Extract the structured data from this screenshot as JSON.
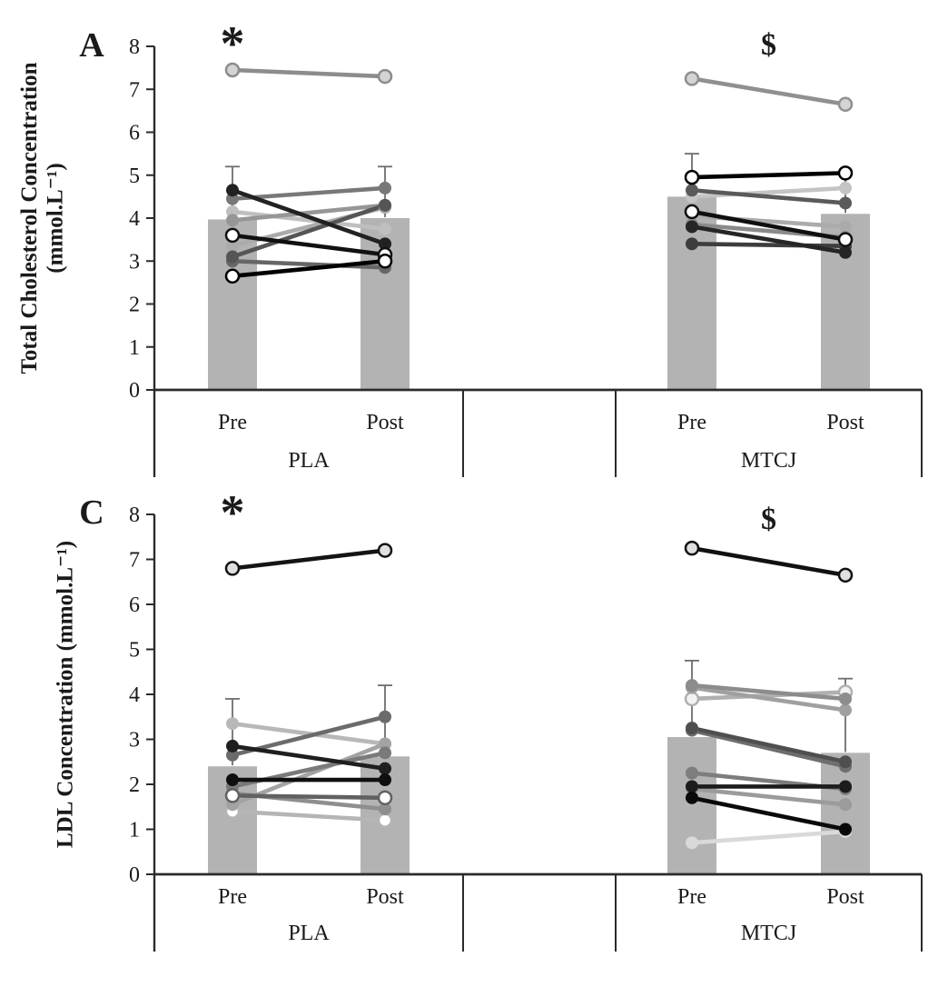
{
  "figure": {
    "background": "#ffffff",
    "axis_color": "#2b2b2b",
    "text_color": "#1a1a1a",
    "error_bar_color": "#6e6e6e"
  },
  "chart_data": [
    {
      "type": "bar",
      "panel_label": "A",
      "ylabel_lines": [
        "Total Cholesterol Concentration",
        "(mmol.L⁻¹)"
      ],
      "ylim": [
        0,
        8
      ],
      "yticks": [
        0,
        1,
        2,
        3,
        4,
        5,
        6,
        7,
        8
      ],
      "categories": [
        "Pre",
        "Post"
      ],
      "bar_color": "#b3b3b3",
      "groups": [
        {
          "label": "PLA",
          "annotation": "*",
          "annotation_anchor": "pre",
          "bars": {
            "Pre": 3.97,
            "Post": 4.0
          },
          "error_top": {
            "Pre": 5.2,
            "Post": 5.2
          },
          "subjects": [
            {
              "pre": 4.15,
              "post": 3.75,
              "color": "#bfbfbf",
              "marker": "filled"
            },
            {
              "pre": 3.35,
              "post": 4.25,
              "color": "#ababab",
              "marker": "filled"
            },
            {
              "pre": 3.95,
              "post": 4.3,
              "color": "#969696",
              "marker": "filled"
            },
            {
              "pre": 7.45,
              "post": 7.3,
              "color": "#8c8c8c",
              "marker": "open",
              "marker_fill": "#d4d4d4"
            },
            {
              "pre": 4.45,
              "post": 4.7,
              "color": "#787878",
              "marker": "filled"
            },
            {
              "pre": 3.0,
              "post": 2.85,
              "color": "#666666",
              "marker": "filled"
            },
            {
              "pre": 3.1,
              "post": 4.3,
              "color": "#555555",
              "marker": "filled"
            },
            {
              "pre": 4.65,
              "post": 3.4,
              "color": "#222222",
              "marker": "filled"
            },
            {
              "pre": 3.6,
              "post": 3.15,
              "color": "#111111",
              "marker": "open",
              "marker_fill": "#ffffff"
            },
            {
              "pre": 2.65,
              "post": 3.0,
              "color": "#000000",
              "marker": "open",
              "marker_fill": "#ffffff"
            }
          ]
        },
        {
          "label": "MTCJ",
          "annotation": "$",
          "annotation_anchor": "center",
          "bars": {
            "Pre": 4.5,
            "Post": 4.1
          },
          "error_top": {
            "Pre": 5.5,
            "Post": 5.05
          },
          "subjects": [
            {
              "pre": 4.5,
              "post": 4.7,
              "color": "#c4c4c4",
              "marker": "filled"
            },
            {
              "pre": 4.05,
              "post": 3.8,
              "color": "#ababab",
              "marker": "filled"
            },
            {
              "pre": 7.25,
              "post": 6.65,
              "color": "#909090",
              "marker": "open",
              "marker_fill": "#d4d4d4"
            },
            {
              "pre": 3.85,
              "post": 3.55,
              "color": "#8a8a8a",
              "marker": "filled"
            },
            {
              "pre": 4.65,
              "post": 4.35,
              "color": "#5a5a5a",
              "marker": "filled"
            },
            {
              "pre": 3.4,
              "post": 3.35,
              "color": "#3d3d3d",
              "marker": "filled"
            },
            {
              "pre": 3.8,
              "post": 3.2,
              "color": "#262626",
              "marker": "filled"
            },
            {
              "pre": 4.15,
              "post": 3.5,
              "color": "#101010",
              "marker": "open",
              "marker_fill": "#ffffff"
            },
            {
              "pre": 4.95,
              "post": 5.05,
              "color": "#000000",
              "marker": "open",
              "marker_fill": "#ffffff"
            }
          ]
        }
      ]
    },
    {
      "type": "bar",
      "panel_label": "C",
      "ylabel_lines": [
        "LDL Concentration (mmol.L⁻¹)"
      ],
      "ylim": [
        0,
        8
      ],
      "yticks": [
        0,
        1,
        2,
        3,
        4,
        5,
        6,
        7,
        8
      ],
      "categories": [
        "Pre",
        "Post"
      ],
      "bar_color": "#b3b3b3",
      "groups": [
        {
          "label": "PLA",
          "annotation": "*",
          "annotation_anchor": "pre",
          "bars": {
            "Pre": 2.4,
            "Post": 2.62
          },
          "error_top": {
            "Pre": 3.9,
            "Post": 4.2
          },
          "subjects": [
            {
              "pre": 1.4,
              "post": 1.2,
              "color": "#b5b5b5",
              "marker": "open",
              "marker_fill": "#ffffff"
            },
            {
              "pre": 3.35,
              "post": 2.9,
              "color": "#b8b8b8",
              "marker": "filled"
            },
            {
              "pre": 1.55,
              "post": 2.9,
              "color": "#a3a3a3",
              "marker": "filled"
            },
            {
              "pre": 1.8,
              "post": 1.45,
              "color": "#8f8f8f",
              "marker": "filled"
            },
            {
              "pre": 1.95,
              "post": 2.7,
              "color": "#7a7a7a",
              "marker": "filled"
            },
            {
              "pre": 2.65,
              "post": 3.5,
              "color": "#6b6b6b",
              "marker": "filled"
            },
            {
              "pre": 1.75,
              "post": 1.7,
              "color": "#616161",
              "marker": "open",
              "marker_fill": "#ffffff"
            },
            {
              "pre": 2.85,
              "post": 2.35,
              "color": "#1f1f1f",
              "marker": "filled"
            },
            {
              "pre": 2.1,
              "post": 2.1,
              "color": "#0f0f0f",
              "marker": "filled"
            },
            {
              "pre": 6.8,
              "post": 7.2,
              "color": "#141414",
              "marker": "open",
              "marker_fill": "#e0e0e0"
            }
          ]
        },
        {
          "label": "MTCJ",
          "annotation": "$",
          "annotation_anchor": "center",
          "bars": {
            "Pre": 3.05,
            "Post": 2.7
          },
          "error_top": {
            "Pre": 4.75,
            "Post": 4.35
          },
          "subjects": [
            {
              "pre": 0.7,
              "post": 0.95,
              "color": "#d9d9d9",
              "marker": "filled"
            },
            {
              "pre": 3.9,
              "post": 4.05,
              "color": "#b0b0b0",
              "marker": "open",
              "marker_fill": "#f2f2f2"
            },
            {
              "pre": 4.15,
              "post": 3.65,
              "color": "#a0a0a0",
              "marker": "filled"
            },
            {
              "pre": 1.9,
              "post": 1.55,
              "color": "#9b9b9b",
              "marker": "filled"
            },
            {
              "pre": 4.2,
              "post": 3.9,
              "color": "#8c8c8c",
              "marker": "filled"
            },
            {
              "pre": 2.25,
              "post": 1.9,
              "color": "#7d7d7d",
              "marker": "filled"
            },
            {
              "pre": 3.2,
              "post": 2.4,
              "color": "#6e6e6e",
              "marker": "filled"
            },
            {
              "pre": 3.25,
              "post": 2.5,
              "color": "#4f4f4f",
              "marker": "filled"
            },
            {
              "pre": 1.95,
              "post": 1.95,
              "color": "#1c1c1c",
              "marker": "filled"
            },
            {
              "pre": 1.7,
              "post": 1.0,
              "color": "#0a0a0a",
              "marker": "filled"
            },
            {
              "pre": 7.25,
              "post": 6.65,
              "color": "#111111",
              "marker": "open",
              "marker_fill": "#e0e0e0"
            }
          ]
        }
      ]
    }
  ]
}
